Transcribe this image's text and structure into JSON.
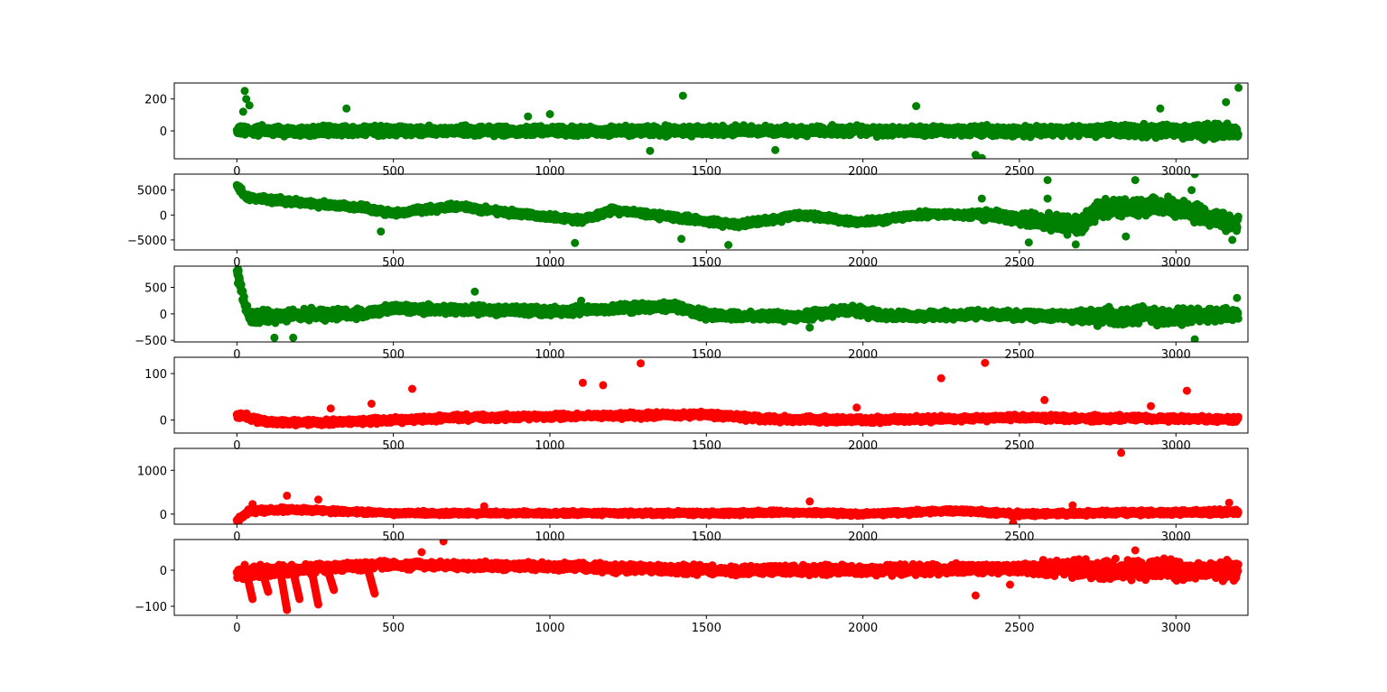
{
  "chart_data": [
    {
      "type": "scatter",
      "color": "#008000",
      "n_points": 3200,
      "xlim": [
        -200,
        3230
      ],
      "ylim": [
        -175,
        300
      ],
      "xticks": [
        0,
        500,
        1000,
        1500,
        2000,
        2500,
        3000
      ],
      "yticks": [
        0,
        200
      ],
      "xtick_labels": [
        "0",
        "500",
        "1000",
        "1500",
        "2000",
        "2500",
        "3000"
      ],
      "ytick_labels": [
        "0",
        "200"
      ],
      "baseline": [
        [
          0,
          0
        ],
        [
          3200,
          0
        ]
      ],
      "band": 30,
      "band_scale": [
        [
          0,
          1
        ],
        [
          2650,
          1
        ],
        [
          3200,
          1.6
        ]
      ],
      "spikes": [
        [
          25,
          250
        ],
        [
          30,
          200
        ],
        [
          40,
          160
        ],
        [
          20,
          120
        ],
        [
          350,
          140
        ],
        [
          930,
          90
        ],
        [
          1000,
          105
        ],
        [
          1320,
          -125
        ],
        [
          1425,
          220
        ],
        [
          1720,
          -120
        ],
        [
          2170,
          155
        ],
        [
          2360,
          -150
        ],
        [
          2380,
          -170
        ],
        [
          2950,
          140
        ],
        [
          3160,
          180
        ],
        [
          3200,
          270
        ]
      ]
    },
    {
      "type": "scatter",
      "color": "#008000",
      "n_points": 3200,
      "xlim": [
        -200,
        3230
      ],
      "ylim": [
        -7000,
        8200
      ],
      "xticks": [
        0,
        500,
        1000,
        1500,
        2000,
        2500,
        3000
      ],
      "yticks": [
        -5000,
        0,
        5000
      ],
      "xtick_labels": [
        "0",
        "500",
        "1000",
        "1500",
        "2000",
        "2500",
        "3000"
      ],
      "ytick_labels": [
        "−5000",
        "0",
        "5000"
      ],
      "baseline": [
        [
          0,
          5800
        ],
        [
          30,
          3500
        ],
        [
          200,
          2500
        ],
        [
          400,
          1500
        ],
        [
          500,
          300
        ],
        [
          700,
          1800
        ],
        [
          900,
          300
        ],
        [
          1100,
          -1000
        ],
        [
          1200,
          1000
        ],
        [
          1400,
          -500
        ],
        [
          1600,
          -2000
        ],
        [
          1800,
          0
        ],
        [
          2000,
          -1500
        ],
        [
          2200,
          200
        ],
        [
          2400,
          0
        ],
        [
          2600,
          -1500
        ],
        [
          2700,
          -2500
        ],
        [
          2750,
          1500
        ],
        [
          3000,
          1500
        ],
        [
          3200,
          -2000
        ]
      ],
      "band": 600,
      "band_scale": [
        [
          0,
          1
        ],
        [
          2300,
          1
        ],
        [
          2500,
          2
        ],
        [
          2700,
          3
        ],
        [
          3200,
          3
        ]
      ],
      "spikes": [
        [
          2590,
          7000
        ],
        [
          2590,
          3300
        ],
        [
          2380,
          3300
        ],
        [
          2870,
          7000
        ],
        [
          3060,
          8200
        ],
        [
          3050,
          5000
        ],
        [
          2840,
          -4300
        ],
        [
          1080,
          -5600
        ],
        [
          1570,
          -6000
        ],
        [
          2680,
          -5900
        ],
        [
          2530,
          -5500
        ],
        [
          3180,
          -5000
        ],
        [
          460,
          -3300
        ],
        [
          1420,
          -4800
        ]
      ]
    },
    {
      "type": "scatter",
      "color": "#008000",
      "n_points": 3200,
      "xlim": [
        -200,
        3230
      ],
      "ylim": [
        -530,
        900
      ],
      "xticks": [
        0,
        500,
        1000,
        1500,
        2000,
        2500,
        3000
      ],
      "yticks": [
        -500,
        0,
        500
      ],
      "xtick_labels": [
        "0",
        "500",
        "1000",
        "1500",
        "2000",
        "2500",
        "3000"
      ],
      "ytick_labels": [
        "−500",
        "0",
        "500"
      ],
      "baseline": [
        [
          0,
          800
        ],
        [
          20,
          300
        ],
        [
          40,
          -50
        ],
        [
          400,
          0
        ],
        [
          500,
          100
        ],
        [
          1000,
          50
        ],
        [
          1400,
          150
        ],
        [
          1500,
          -30
        ],
        [
          1800,
          -50
        ],
        [
          1950,
          80
        ],
        [
          2100,
          -50
        ],
        [
          2400,
          0
        ],
        [
          2600,
          -50
        ],
        [
          3200,
          -30
        ]
      ],
      "band": 80,
      "band_scale": [
        [
          0,
          1.6
        ],
        [
          450,
          1
        ],
        [
          2650,
          1
        ],
        [
          2750,
          2
        ],
        [
          3200,
          1.5
        ]
      ],
      "spikes": [
        [
          5,
          820
        ],
        [
          10,
          600
        ],
        [
          760,
          420
        ],
        [
          1100,
          250
        ],
        [
          1830,
          -260
        ],
        [
          3060,
          -480
        ],
        [
          3195,
          300
        ],
        [
          120,
          -450
        ],
        [
          180,
          -450
        ]
      ]
    },
    {
      "type": "scatter",
      "color": "#ff0000",
      "n_points": 3200,
      "xlim": [
        -200,
        3230
      ],
      "ylim": [
        -28,
        135
      ],
      "xticks": [
        0,
        500,
        1000,
        1500,
        2000,
        2500,
        3000
      ],
      "yticks": [
        0,
        100
      ],
      "xtick_labels": [
        "0",
        "500",
        "1000",
        "1500",
        "2000",
        "2500",
        "3000"
      ],
      "ytick_labels": [
        "0",
        "100"
      ],
      "baseline": [
        [
          0,
          12
        ],
        [
          100,
          -5
        ],
        [
          300,
          -5
        ],
        [
          700,
          5
        ],
        [
          1000,
          8
        ],
        [
          1300,
          10
        ],
        [
          1500,
          12
        ],
        [
          1700,
          2
        ],
        [
          2000,
          0
        ],
        [
          2500,
          5
        ],
        [
          3200,
          2
        ]
      ],
      "band": 6,
      "band_scale": [
        [
          0,
          1
        ],
        [
          3200,
          1
        ]
      ],
      "spikes": [
        [
          1290,
          122
        ],
        [
          2390,
          123
        ],
        [
          1105,
          80
        ],
        [
          1170,
          75
        ],
        [
          2250,
          90
        ],
        [
          560,
          67
        ],
        [
          3035,
          63
        ],
        [
          2580,
          43
        ],
        [
          430,
          35
        ],
        [
          300,
          25
        ],
        [
          1980,
          27
        ],
        [
          2920,
          30
        ]
      ]
    },
    {
      "type": "scatter",
      "color": "#ff0000",
      "n_points": 3200,
      "xlim": [
        -200,
        3230
      ],
      "ylim": [
        -230,
        1500
      ],
      "xticks": [
        0,
        500,
        1000,
        1500,
        2000,
        2500,
        3000
      ],
      "yticks": [
        0,
        1000
      ],
      "xtick_labels": [
        "0",
        "500",
        "1000",
        "1500",
        "2000",
        "2500",
        "3000"
      ],
      "ytick_labels": [
        "0",
        "1000"
      ],
      "baseline": [
        [
          0,
          -150
        ],
        [
          40,
          80
        ],
        [
          200,
          100
        ],
        [
          500,
          20
        ],
        [
          1500,
          20
        ],
        [
          1800,
          40
        ],
        [
          2000,
          0
        ],
        [
          2300,
          80
        ],
        [
          2500,
          0
        ],
        [
          2800,
          30
        ],
        [
          3200,
          50
        ]
      ],
      "band": 40,
      "band_scale": [
        [
          0,
          1.5
        ],
        [
          400,
          1
        ],
        [
          2700,
          1.2
        ],
        [
          3200,
          1.5
        ]
      ],
      "spikes": [
        [
          2825,
          1400
        ],
        [
          160,
          420
        ],
        [
          260,
          330
        ],
        [
          1830,
          290
        ],
        [
          50,
          230
        ],
        [
          790,
          180
        ],
        [
          2670,
          200
        ],
        [
          3170,
          260
        ],
        [
          2480,
          -200
        ]
      ]
    },
    {
      "type": "scatter",
      "color": "#ff0000",
      "n_points": 3200,
      "xlim": [
        -200,
        3230
      ],
      "ylim": [
        -125,
        85
      ],
      "xticks": [
        0,
        500,
        1000,
        1500,
        2000,
        2500,
        3000
      ],
      "yticks": [
        -100,
        0
      ],
      "xtick_labels": [
        "0",
        "500",
        "1000",
        "1500",
        "2000",
        "2500",
        "3000"
      ],
      "ytick_labels": [
        "−100",
        "0"
      ],
      "baseline": [
        [
          0,
          -10
        ],
        [
          450,
          15
        ],
        [
          1000,
          10
        ],
        [
          1500,
          0
        ],
        [
          2000,
          0
        ],
        [
          2500,
          5
        ],
        [
          3200,
          0
        ]
      ],
      "band": 10,
      "band_scale": [
        [
          0,
          1.5
        ],
        [
          450,
          1
        ],
        [
          2500,
          1.4
        ],
        [
          2650,
          2.5
        ],
        [
          3200,
          2.5
        ]
      ],
      "spikes": [
        [
          660,
          80
        ],
        [
          590,
          50
        ],
        [
          2870,
          55
        ],
        [
          160,
          -110
        ],
        [
          2360,
          -70
        ],
        [
          2470,
          -40
        ]
      ],
      "sawteeth": [
        [
          50,
          -80
        ],
        [
          100,
          -60
        ],
        [
          160,
          -110
        ],
        [
          200,
          -80
        ],
        [
          260,
          -95
        ],
        [
          310,
          -55
        ],
        [
          440,
          -65
        ]
      ]
    }
  ]
}
